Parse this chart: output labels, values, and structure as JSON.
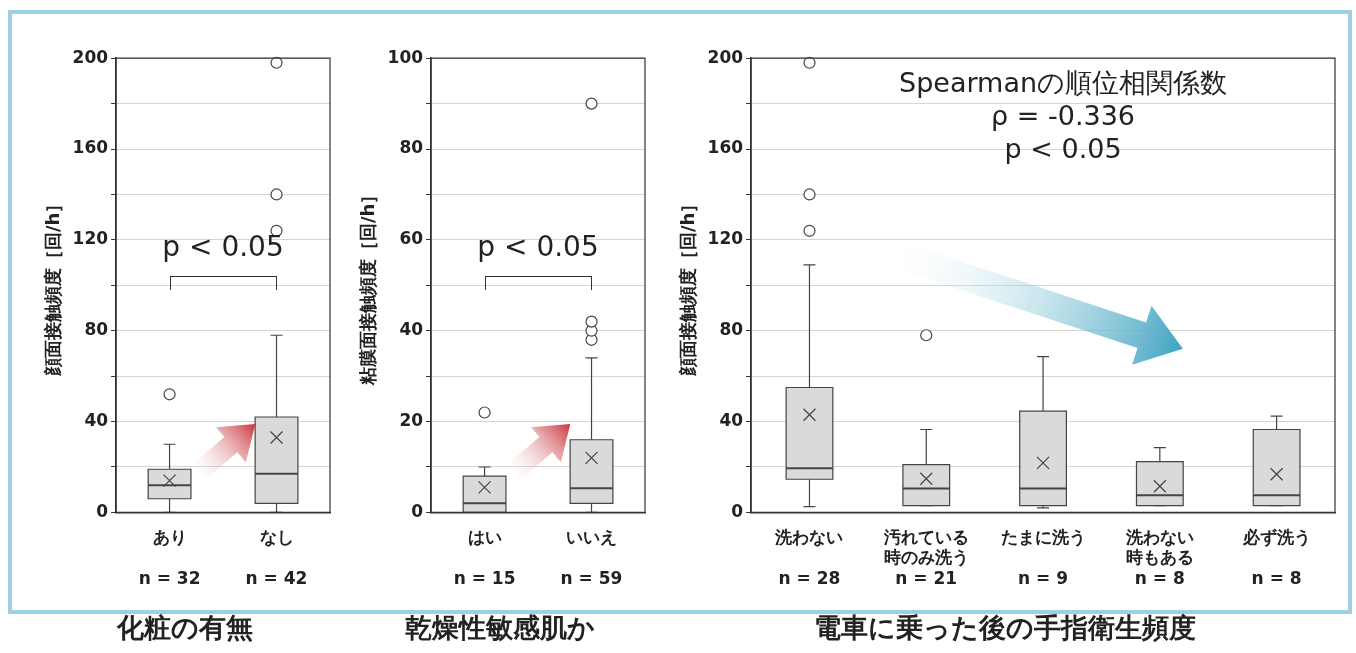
{
  "chart_data": [
    {
      "type": "box",
      "title": "化粧の有無",
      "ylabel": "顔面接触頻度［回/h］",
      "categories": [
        "あり\nn = 32",
        "なし\nn = 42"
      ],
      "color": "#d9dadc",
      "boxes": [
        {
          "low": 0,
          "q1": 6,
          "median": 12,
          "q3": 19,
          "high": 30,
          "mean": 14,
          "outliers": [
            52
          ]
        },
        {
          "low": 0,
          "q1": 4,
          "median": 17,
          "q3": 42,
          "high": 78,
          "mean": 33,
          "outliers": [
            124,
            140,
            198
          ]
        }
      ],
      "ylim": [
        0,
        200
      ],
      "yticks": [
        0,
        {
          "value": 20,
          "label": null
        },
        40,
        {
          "value": 60,
          "label": null
        },
        80,
        {
          "value": 100,
          "label": null
        },
        120,
        {
          "value": 140,
          "label": null
        },
        160,
        {
          "value": 180,
          "label": null
        },
        200
      ],
      "grid": "y",
      "legend": false,
      "annotations": [
        "p < 0.05"
      ]
    },
    {
      "type": "box",
      "title": "乾燥性敏感肌か",
      "ylabel": "粘膜面接触頻度［回/h］",
      "categories": [
        "はい\nn = 15",
        "いいえ\nn = 59"
      ],
      "color": "#d9dadc",
      "boxes": [
        {
          "low": 0,
          "q1": 0,
          "median": 2,
          "q3": 8,
          "high": 10,
          "mean": 5.5,
          "outliers": [
            22
          ]
        },
        {
          "low": 0,
          "q1": 2,
          "median": 5.3,
          "q3": 16,
          "high": 34,
          "mean": 12,
          "outliers": [
            38,
            40,
            42,
            90
          ]
        }
      ],
      "ylim": [
        0,
        100
      ],
      "yticks": [
        0,
        {
          "value": 10,
          "label": null
        },
        20,
        {
          "value": 30,
          "label": null
        },
        40,
        {
          "value": 50,
          "label": null
        },
        60,
        {
          "value": 70,
          "label": null
        },
        80,
        {
          "value": 90,
          "label": null
        },
        100
      ],
      "grid": "y",
      "legend": false,
      "annotations": [
        "p < 0.05"
      ]
    },
    {
      "type": "box",
      "title": "電車に乗った後の手指衛生頻度",
      "ylabel": "顔面接触頻度［回/h］",
      "categories": [
        "洗わない\nn = 28",
        "汚れている時のみ洗う\nn = 21",
        "たまに洗う\nn = 9",
        "洗わない時もある\nn = 8",
        "必ず洗う\nn = 8"
      ],
      "color": "#d9dadc",
      "boxes": [
        {
          "low": 2.5,
          "q1": 14.6,
          "median": 19.4,
          "q3": 55,
          "high": 109,
          "mean": 43,
          "outliers": [
            124,
            140,
            198
          ]
        },
        {
          "low": 3,
          "q1": 3,
          "median": 10.5,
          "q3": 21,
          "high": 36.5,
          "mean": 14.8,
          "outliers": [
            78
          ]
        },
        {
          "low": 2,
          "q1": 3,
          "median": 10.5,
          "q3": 44.6,
          "high": 68.6,
          "mean": 21.8
        },
        {
          "low": 3,
          "q1": 3,
          "median": 7.6,
          "q3": 22.4,
          "high": 28.5,
          "mean": 11.5
        },
        {
          "low": 3,
          "q1": 3,
          "median": 7.6,
          "q3": 36.5,
          "high": 42.4,
          "mean": 16.8
        }
      ],
      "ylim": [
        0,
        200
      ],
      "yticks": [
        0,
        {
          "value": 20,
          "label": null
        },
        40,
        {
          "value": 60,
          "label": null
        },
        80,
        {
          "value": 100,
          "label": null
        },
        120,
        {
          "value": 140,
          "label": null
        },
        160,
        {
          "value": 180,
          "label": null
        },
        200
      ],
      "grid": "y",
      "legend": false,
      "annotations": [
        "Spearmanの順位相関係数",
        "ρ = -0.336",
        "p < 0.05"
      ]
    }
  ]
}
